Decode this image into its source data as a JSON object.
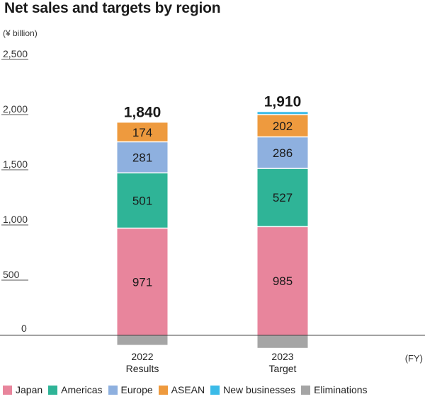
{
  "chart_data": {
    "type": "bar",
    "stacked": true,
    "title": "Net sales and targets by region",
    "unit_label": "(¥ billion)",
    "xaxis_suffix": "(FY)",
    "categories": [
      {
        "year": "2022",
        "label": "Results"
      },
      {
        "year": "2023",
        "label": "Target"
      }
    ],
    "totals": [
      "1,840",
      "1,910"
    ],
    "yticks": [
      "0",
      "500",
      "1,000",
      "1,500",
      "2,000",
      "2,500"
    ],
    "ylim": [
      0,
      2500
    ],
    "series": [
      {
        "name": "Japan",
        "color": "#e8859c",
        "values": [
          971,
          985
        ],
        "labels": [
          "971",
          "985"
        ]
      },
      {
        "name": "Americas",
        "color": "#2fb497",
        "values": [
          501,
          527
        ],
        "labels": [
          "501",
          "527"
        ]
      },
      {
        "name": "Europe",
        "color": "#8eb0df",
        "values": [
          281,
          286
        ],
        "labels": [
          "281",
          "286"
        ]
      },
      {
        "name": "ASEAN",
        "color": "#ee9a3e",
        "values": [
          174,
          202
        ],
        "labels": [
          "174",
          "202"
        ]
      },
      {
        "name": "New businesses",
        "color": "#3bbbe8",
        "values": [
          0,
          24
        ],
        "labels": [
          "",
          ""
        ]
      },
      {
        "name": "Eliminations",
        "color": "#a5a5a5",
        "values": [
          -87,
          -114
        ],
        "labels": [
          "",
          ""
        ]
      }
    ]
  }
}
